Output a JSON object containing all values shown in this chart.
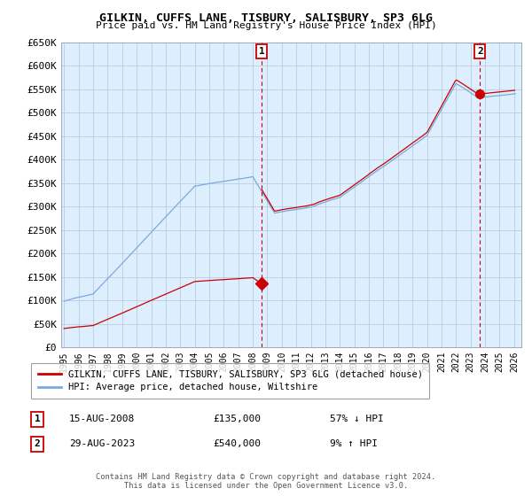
{
  "title": "GILKIN, CUFFS LANE, TISBURY, SALISBURY, SP3 6LG",
  "subtitle": "Price paid vs. HM Land Registry's House Price Index (HPI)",
  "ylabel_ticks": [
    "£0",
    "£50K",
    "£100K",
    "£150K",
    "£200K",
    "£250K",
    "£300K",
    "£350K",
    "£400K",
    "£450K",
    "£500K",
    "£550K",
    "£600K",
    "£650K"
  ],
  "ylim": [
    0,
    650000
  ],
  "ytick_values": [
    0,
    50000,
    100000,
    150000,
    200000,
    250000,
    300000,
    350000,
    400000,
    450000,
    500000,
    550000,
    600000,
    650000
  ],
  "xlim_start": 1994.8,
  "xlim_end": 2026.5,
  "hpi_color": "#7aaadd",
  "sale_color": "#cc0000",
  "marker1_date": 2008.62,
  "marker2_date": 2023.65,
  "sale1_price": 135000,
  "sale2_price": 540000,
  "annotation1": "15-AUG-2008",
  "annotation1_price": "£135,000",
  "annotation1_hpi": "57% ↓ HPI",
  "annotation2": "29-AUG-2023",
  "annotation2_price": "£540,000",
  "annotation2_hpi": "9% ↑ HPI",
  "legend_line1": "GILKIN, CUFFS LANE, TISBURY, SALISBURY, SP3 6LG (detached house)",
  "legend_line2": "HPI: Average price, detached house, Wiltshire",
  "footer": "Contains HM Land Registry data © Crown copyright and database right 2024.\nThis data is licensed under the Open Government Licence v3.0.",
  "background_color": "#ffffff",
  "plot_bg_color": "#ddeeff",
  "grid_color": "#bbccdd",
  "xtick_years": [
    1995,
    1996,
    1997,
    1998,
    1999,
    2000,
    2001,
    2002,
    2003,
    2004,
    2005,
    2006,
    2007,
    2008,
    2009,
    2010,
    2011,
    2012,
    2013,
    2014,
    2015,
    2016,
    2017,
    2018,
    2019,
    2020,
    2021,
    2022,
    2023,
    2024,
    2025,
    2026
  ]
}
